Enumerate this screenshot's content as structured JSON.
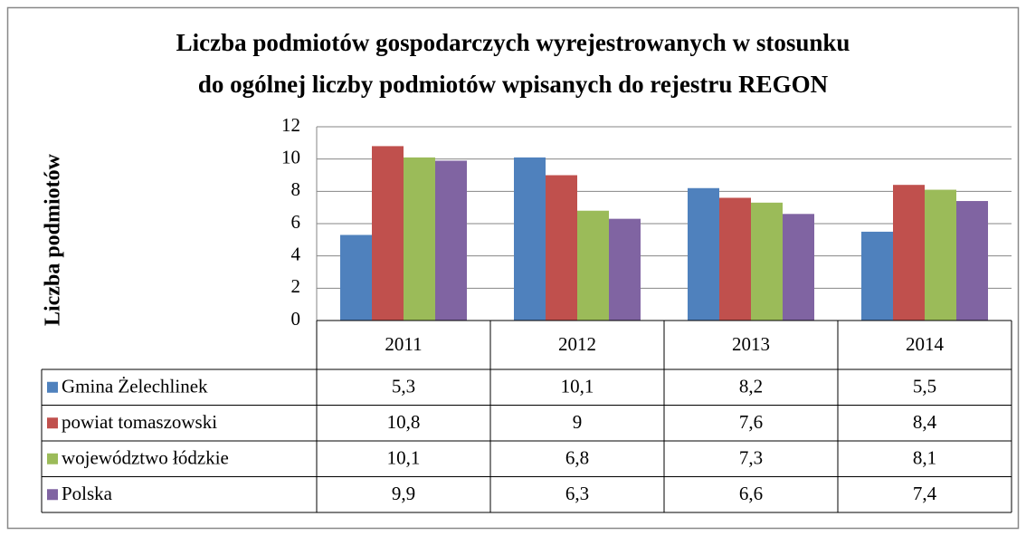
{
  "chart_data": {
    "type": "bar",
    "title": [
      "Liczba podmiotów gospodarczych wyrejestrowanych w stosunku",
      "do ogólnej liczby podmiotów wpisanych do rejestru REGON"
    ],
    "ylabel": "Liczba podmiotów",
    "categories": [
      "2011",
      "2012",
      "2013",
      "2014"
    ],
    "series": [
      {
        "name": "Gmina Żelechlinek",
        "color": "#4f81bd",
        "values": [
          5.3,
          10.1,
          8.2,
          5.5
        ],
        "value_labels": [
          "5,3",
          "10,1",
          "8,2",
          "5,5"
        ]
      },
      {
        "name": "powiat tomaszowski",
        "color": "#c0504d",
        "values": [
          10.8,
          9,
          7.6,
          8.4
        ],
        "value_labels": [
          "10,8",
          "9",
          "7,6",
          "8,4"
        ]
      },
      {
        "name": "województwo łódzkie",
        "color": "#9bbb59",
        "values": [
          10.1,
          6.8,
          7.3,
          8.1
        ],
        "value_labels": [
          "10,1",
          "6,8",
          "7,3",
          "8,1"
        ]
      },
      {
        "name": "Polska",
        "color": "#8064a2",
        "values": [
          9.9,
          6.3,
          6.6,
          7.4
        ],
        "value_labels": [
          "9,9",
          "6,3",
          "6,6",
          "7,4"
        ]
      }
    ],
    "ylim": [
      0,
      12
    ],
    "yticks": [
      0,
      2,
      4,
      6,
      8,
      10,
      12
    ],
    "grid": true,
    "legend": "table"
  }
}
